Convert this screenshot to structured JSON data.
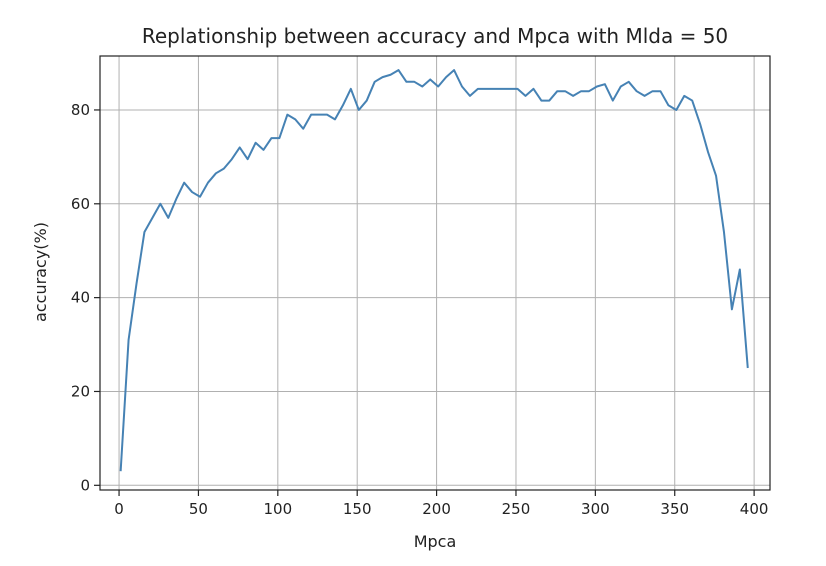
{
  "chart_data": {
    "type": "line",
    "title": "Replationship between accuracy and Mpca with Mlda = 50",
    "xlabel": "Mpca",
    "ylabel": "accuracy(%)",
    "xlim": [
      -12,
      410
    ],
    "ylim": [
      -1,
      91.5
    ],
    "xticks": [
      0,
      50,
      100,
      150,
      200,
      250,
      300,
      350,
      400
    ],
    "yticks": [
      0,
      20,
      40,
      60,
      80
    ],
    "grid": true,
    "line_color": "#4682b4",
    "series": [
      {
        "x": [
          1,
          6,
          11,
          16,
          21,
          26,
          31,
          36,
          41,
          46,
          51,
          56,
          61,
          66,
          71,
          76,
          81,
          86,
          91,
          96,
          101,
          106,
          111,
          116,
          121,
          126,
          131,
          136,
          141,
          146,
          151,
          156,
          161,
          166,
          171,
          176,
          181,
          186,
          191,
          196,
          201,
          206,
          211,
          216,
          221,
          226,
          231,
          236,
          241,
          246,
          251,
          256,
          261,
          266,
          271,
          276,
          281,
          286,
          291,
          296,
          301,
          306,
          311,
          316,
          321,
          326,
          331,
          336,
          341,
          346,
          351,
          356,
          361,
          366,
          371,
          376,
          381,
          386,
          391,
          396
        ],
        "values": [
          3,
          31,
          43,
          54,
          57,
          60,
          57,
          61,
          64.5,
          62.5,
          61.5,
          64.5,
          66.5,
          67.5,
          69.5,
          72,
          69.5,
          73,
          71.5,
          74,
          74,
          79,
          78,
          76,
          79,
          79,
          79,
          78,
          81,
          84.5,
          80,
          82,
          86,
          87,
          87.5,
          88.5,
          86,
          86,
          85,
          86.5,
          85,
          87,
          88.5,
          85,
          83,
          84.5,
          84.5,
          84.5,
          84.5,
          84.5,
          84.5,
          83,
          84.5,
          82,
          82,
          84,
          84,
          83,
          84,
          84,
          85,
          85.5,
          82,
          85,
          86,
          84,
          83,
          84,
          84,
          81,
          80,
          83,
          82,
          77,
          71,
          66,
          54,
          37.5,
          46,
          25
        ]
      }
    ]
  }
}
